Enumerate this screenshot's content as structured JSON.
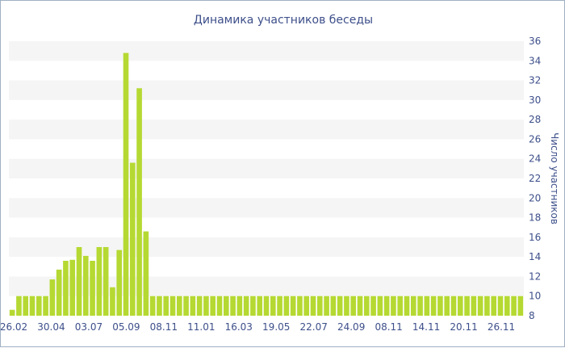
{
  "chart_data": {
    "type": "bar",
    "title": "Динамика участников беседы",
    "ylabel": "Число участников",
    "xlabel": "",
    "ylim": [
      8,
      36
    ],
    "y_ticks": [
      8,
      10,
      12,
      14,
      16,
      18,
      20,
      22,
      24,
      26,
      28,
      30,
      32,
      34,
      36
    ],
    "x_tick_labels": [
      "26.02",
      "30.04",
      "03.07",
      "05.09",
      "08.11",
      "11.01",
      "16.03",
      "19.05",
      "22.07",
      "24.09",
      "08.11",
      "14.11",
      "20.11",
      "26.11"
    ],
    "bar_color": "#b5d932",
    "band_color": "#f5f5f5",
    "grid": true,
    "values": [
      8.6,
      10,
      10,
      10,
      10,
      10,
      11.7,
      12.7,
      13.6,
      13.7,
      15,
      14.1,
      13.6,
      15,
      15,
      10.9,
      14.7,
      34.8,
      23.6,
      31.2,
      16.6,
      10,
      10,
      10,
      10,
      10,
      10,
      10,
      10,
      10,
      10,
      10,
      10,
      10,
      10,
      10,
      10,
      10,
      10,
      10,
      10,
      10,
      10,
      10,
      10,
      10,
      10,
      10,
      10,
      10,
      10,
      10,
      10,
      10,
      10,
      10,
      10,
      10,
      10,
      10,
      10,
      10,
      10,
      10,
      10,
      10,
      10,
      10,
      10,
      10,
      10,
      10,
      10,
      10,
      10,
      10,
      10
    ]
  }
}
